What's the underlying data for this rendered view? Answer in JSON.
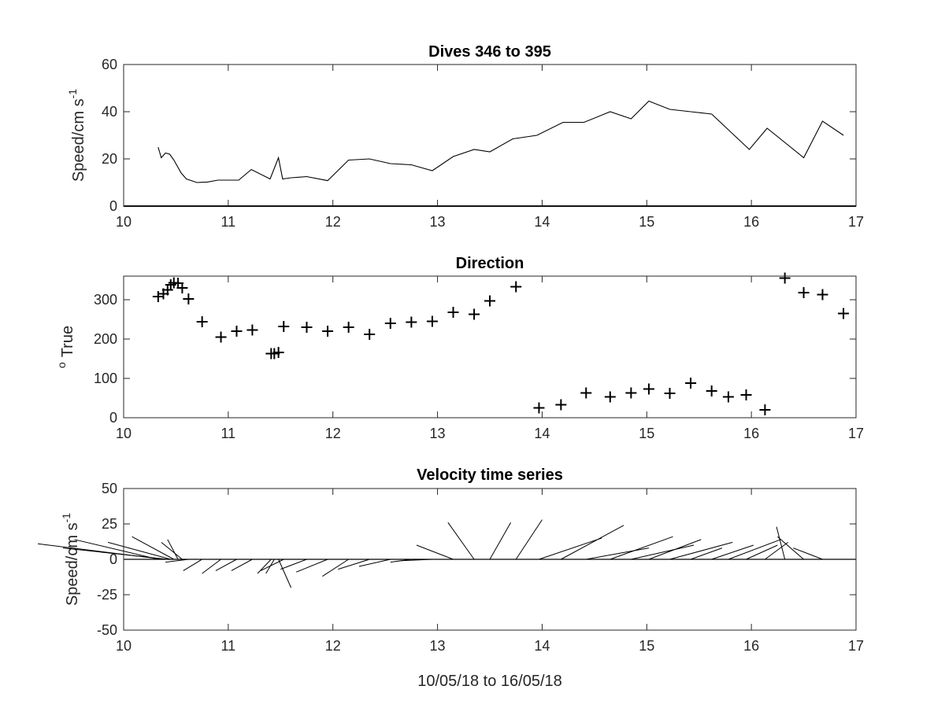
{
  "chart_data": [
    {
      "type": "line",
      "title": "Dives 346 to 395",
      "xlabel": "",
      "ylabel": "Speed/cm s",
      "ylabel_exponent": "-1",
      "xlim": [
        10,
        17
      ],
      "ylim": [
        0,
        60
      ],
      "xticks": [
        "10",
        "11",
        "12",
        "13",
        "14",
        "15",
        "16",
        "17"
      ],
      "yticks": [
        "0",
        "20",
        "40",
        "60"
      ],
      "grid": false,
      "series": [
        {
          "x": [
            10.33,
            10.36,
            10.4,
            10.44,
            10.48,
            10.55,
            10.6,
            10.7,
            10.8,
            10.9,
            11.0,
            11.1,
            11.22,
            11.4,
            11.48,
            11.52,
            11.6,
            11.75,
            11.95,
            12.15,
            12.35,
            12.55,
            12.75,
            12.95,
            13.15,
            13.35,
            13.5,
            13.72,
            13.95,
            14.2,
            14.4,
            14.65,
            14.85,
            15.02,
            15.22,
            15.42,
            15.62,
            15.98,
            16.15,
            16.5,
            16.68,
            16.88
          ],
          "y": [
            25,
            20.5,
            22.5,
            22,
            19.5,
            14,
            11.5,
            10,
            10.2,
            11,
            11,
            11,
            15.5,
            11.5,
            20.5,
            11.5,
            12,
            12.5,
            10.8,
            19.5,
            20,
            18,
            17.5,
            15,
            21,
            24,
            23,
            28.5,
            30,
            35.5,
            35.5,
            40,
            37,
            44.5,
            41,
            40,
            39,
            24,
            33,
            20.5,
            36,
            30
          ]
        }
      ]
    },
    {
      "type": "scatter",
      "title": "Direction",
      "xlabel": "",
      "ylabel": "True",
      "ylabel_prefix": "o",
      "xlim": [
        10,
        17
      ],
      "ylim": [
        0,
        360
      ],
      "xticks": [
        "10",
        "11",
        "12",
        "13",
        "14",
        "15",
        "16",
        "17"
      ],
      "yticks": [
        "0",
        "100",
        "200",
        "300"
      ],
      "grid": false,
      "marker": "+",
      "series": [
        {
          "x": [
            10.33,
            10.38,
            10.42,
            10.45,
            10.48,
            10.52,
            10.56,
            10.62,
            10.75,
            10.93,
            11.08,
            11.23,
            11.41,
            11.44,
            11.48,
            11.53,
            11.75,
            11.95,
            12.15,
            12.35,
            12.55,
            12.75,
            12.95,
            13.15,
            13.35,
            13.5,
            13.75,
            13.97,
            14.18,
            14.42,
            14.65,
            14.85,
            15.02,
            15.22,
            15.42,
            15.62,
            15.78,
            15.95,
            16.13,
            16.32,
            16.5,
            16.68,
            16.88
          ],
          "y": [
            308,
            315,
            325,
            338,
            343,
            342,
            330,
            302,
            244,
            205,
            220,
            223,
            163,
            163,
            166,
            232,
            230,
            220,
            230,
            212,
            240,
            243,
            245,
            268,
            263,
            297,
            333,
            25,
            33,
            63,
            53,
            63,
            73,
            62,
            88,
            68,
            53,
            58,
            20,
            355,
            318,
            313,
            265
          ]
        }
      ]
    },
    {
      "type": "line",
      "subtype": "stick",
      "title": "Velocity time series",
      "xlabel": "10/05/18 to 16/05/18",
      "ylabel": "Speed/cm s",
      "ylabel_exponent": "-1",
      "xlim": [
        10,
        17
      ],
      "ylim": [
        -50,
        50
      ],
      "xticks": [
        "10",
        "11",
        "12",
        "13",
        "14",
        "15",
        "16",
        "17"
      ],
      "yticks": [
        "-50",
        "-25",
        "0",
        "25",
        "50"
      ],
      "grid": false,
      "sticks": [
        {
          "x": 10.33,
          "u": -0.8,
          "v": 14
        },
        {
          "x": 10.38,
          "u": -1.2,
          "v": 11
        },
        {
          "x": 10.42,
          "u": -1.0,
          "v": 8
        },
        {
          "x": 10.45,
          "u": -0.6,
          "v": 12
        },
        {
          "x": 10.48,
          "u": -0.4,
          "v": 16
        },
        {
          "x": 10.52,
          "u": -0.1,
          "v": 14
        },
        {
          "x": 10.56,
          "u": -0.2,
          "v": 12
        },
        {
          "x": 10.62,
          "u": -0.22,
          "v": -2
        },
        {
          "x": 10.75,
          "u": -0.18,
          "v": -8
        },
        {
          "x": 10.93,
          "u": -0.18,
          "v": -10
        },
        {
          "x": 11.08,
          "u": -0.2,
          "v": -8
        },
        {
          "x": 11.23,
          "u": -0.2,
          "v": -8
        },
        {
          "x": 11.41,
          "u": -0.13,
          "v": -10
        },
        {
          "x": 11.44,
          "u": -0.08,
          "v": -10
        },
        {
          "x": 11.48,
          "u": 0.12,
          "v": -20
        },
        {
          "x": 11.53,
          "u": -0.22,
          "v": -8
        },
        {
          "x": 11.75,
          "u": -0.25,
          "v": -7
        },
        {
          "x": 11.95,
          "u": -0.3,
          "v": -9
        },
        {
          "x": 12.15,
          "u": -0.25,
          "v": -12
        },
        {
          "x": 12.35,
          "u": -0.3,
          "v": -7
        },
        {
          "x": 12.55,
          "u": -0.3,
          "v": -5
        },
        {
          "x": 12.75,
          "u": -0.2,
          "v": -2
        },
        {
          "x": 12.95,
          "u": -0.3,
          "v": -1
        },
        {
          "x": 13.15,
          "u": -0.35,
          "v": 10
        },
        {
          "x": 13.35,
          "u": -0.25,
          "v": 26
        },
        {
          "x": 13.5,
          "u": 0.2,
          "v": 26
        },
        {
          "x": 13.75,
          "u": 0.25,
          "v": 28
        },
        {
          "x": 13.97,
          "u": 0.6,
          "v": 15
        },
        {
          "x": 14.18,
          "u": 0.6,
          "v": 24
        },
        {
          "x": 14.42,
          "u": 0.6,
          "v": 8
        },
        {
          "x": 14.65,
          "u": 0.6,
          "v": 16
        },
        {
          "x": 14.85,
          "u": 0.6,
          "v": 10
        },
        {
          "x": 15.02,
          "u": 0.5,
          "v": 14
        },
        {
          "x": 15.22,
          "u": 0.6,
          "v": 12
        },
        {
          "x": 15.42,
          "u": 0.3,
          "v": 8
        },
        {
          "x": 15.62,
          "u": 0.4,
          "v": 10
        },
        {
          "x": 15.78,
          "u": 0.5,
          "v": 14
        },
        {
          "x": 15.95,
          "u": 0.3,
          "v": 10
        },
        {
          "x": 16.13,
          "u": 0.22,
          "v": 12
        },
        {
          "x": 16.32,
          "u": -0.08,
          "v": 23
        },
        {
          "x": 16.5,
          "u": -0.25,
          "v": 16
        },
        {
          "x": 16.68,
          "u": -0.28,
          "v": 8
        },
        {
          "x": 16.88,
          "u": -0.3,
          "v": 0
        }
      ]
    }
  ]
}
